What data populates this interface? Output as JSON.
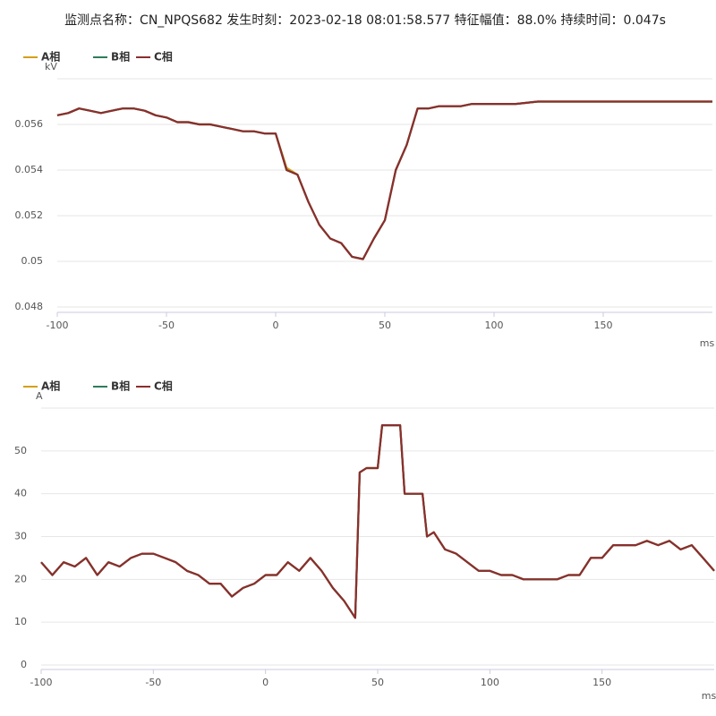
{
  "title": "监测点名称：CN_NPQS682 发生时刻：2023-02-18 08:01:58.577 特征幅值：88.0% 持续时间：0.047s",
  "chart_data": [
    {
      "type": "line",
      "y_unit": "kV",
      "x_unit": "ms",
      "xlim": [
        -100,
        200
      ],
      "xticks": [
        -100,
        -50,
        0,
        50,
        100,
        150
      ],
      "ylim": [
        0.048,
        0.058
      ],
      "yticks": [
        0.048,
        0.05,
        0.052,
        0.054,
        0.056
      ],
      "grid": true,
      "x": [
        -100,
        -95,
        -90,
        -85,
        -80,
        -75,
        -70,
        -65,
        -60,
        -55,
        -50,
        -45,
        -40,
        -35,
        -30,
        -25,
        -20,
        -15,
        -10,
        -5,
        0,
        5,
        10,
        15,
        20,
        25,
        30,
        35,
        40,
        45,
        50,
        55,
        60,
        65,
        70,
        75,
        80,
        85,
        90,
        95,
        100,
        110,
        120,
        130,
        140,
        150,
        160,
        170,
        180,
        190,
        200
      ],
      "series": [
        {
          "name": "A相",
          "color": "#d4a017",
          "values": [
            0.0564,
            0.0565,
            0.0567,
            0.0566,
            0.0565,
            0.0566,
            0.0567,
            0.0567,
            0.0566,
            0.0564,
            0.0563,
            0.0561,
            0.0561,
            0.056,
            0.056,
            0.0559,
            0.0558,
            0.0557,
            0.0557,
            0.0556,
            0.0556,
            0.0541,
            0.0538,
            0.0526,
            0.0516,
            0.051,
            0.0508,
            0.0502,
            0.0501,
            0.051,
            0.0518,
            0.054,
            0.0551,
            0.0567,
            0.0567,
            0.0568,
            0.0568,
            0.0568,
            0.0569,
            0.0569,
            0.0569,
            0.0569,
            0.057,
            0.057,
            0.057,
            0.057,
            0.057,
            0.057,
            0.057,
            0.057,
            0.057
          ]
        },
        {
          "name": "B相",
          "color": "#2e7d5b",
          "values": [
            0.0564,
            0.0565,
            0.0567,
            0.0566,
            0.0565,
            0.0566,
            0.0567,
            0.0567,
            0.0566,
            0.0564,
            0.0563,
            0.0561,
            0.0561,
            0.056,
            0.056,
            0.0559,
            0.0558,
            0.0557,
            0.0557,
            0.0556,
            0.0556,
            0.054,
            0.0538,
            0.0526,
            0.0516,
            0.051,
            0.0508,
            0.0502,
            0.0501,
            0.051,
            0.0518,
            0.054,
            0.0551,
            0.0567,
            0.0567,
            0.0568,
            0.0568,
            0.0568,
            0.0569,
            0.0569,
            0.0569,
            0.0569,
            0.057,
            0.057,
            0.057,
            0.057,
            0.057,
            0.057,
            0.057,
            0.057,
            0.057
          ]
        },
        {
          "name": "C相",
          "color": "#8b2e2e",
          "values": [
            0.0564,
            0.0565,
            0.0567,
            0.0566,
            0.0565,
            0.0566,
            0.0567,
            0.0567,
            0.0566,
            0.0564,
            0.0563,
            0.0561,
            0.0561,
            0.056,
            0.056,
            0.0559,
            0.0558,
            0.0557,
            0.0557,
            0.0556,
            0.0556,
            0.054,
            0.0538,
            0.0526,
            0.0516,
            0.051,
            0.0508,
            0.0502,
            0.0501,
            0.051,
            0.0518,
            0.054,
            0.0551,
            0.0567,
            0.0567,
            0.0568,
            0.0568,
            0.0568,
            0.0569,
            0.0569,
            0.0569,
            0.0569,
            0.057,
            0.057,
            0.057,
            0.057,
            0.057,
            0.057,
            0.057,
            0.057,
            0.057
          ]
        }
      ]
    },
    {
      "type": "line",
      "y_unit": "A",
      "x_unit": "ms",
      "xlim": [
        -100,
        200
      ],
      "xticks": [
        -100,
        -50,
        0,
        50,
        100,
        150
      ],
      "ylim": [
        0,
        60
      ],
      "yticks": [
        0,
        10,
        20,
        30,
        40,
        50
      ],
      "grid": true,
      "x": [
        -100,
        -95,
        -90,
        -85,
        -80,
        -75,
        -70,
        -65,
        -60,
        -55,
        -50,
        -45,
        -40,
        -35,
        -30,
        -25,
        -20,
        -15,
        -10,
        -5,
        0,
        5,
        10,
        15,
        20,
        25,
        30,
        35,
        40,
        42,
        45,
        50,
        52,
        55,
        60,
        62,
        65,
        70,
        72,
        75,
        80,
        85,
        90,
        95,
        100,
        105,
        110,
        115,
        120,
        125,
        130,
        135,
        140,
        145,
        150,
        155,
        160,
        165,
        170,
        175,
        180,
        185,
        190,
        195,
        200
      ],
      "series": [
        {
          "name": "A相",
          "color": "#d4a017",
          "values": [
            24,
            21,
            24,
            23,
            25,
            21,
            24,
            23,
            25,
            26,
            26,
            25,
            24,
            22,
            21,
            19,
            19,
            16,
            18,
            19,
            21,
            21,
            24,
            22,
            25,
            22,
            18,
            15,
            11,
            45,
            46,
            46,
            56,
            56,
            56,
            40,
            40,
            40,
            30,
            31,
            27,
            26,
            24,
            22,
            22,
            21,
            21,
            20,
            20,
            20,
            20,
            21,
            21,
            25,
            25,
            28,
            28,
            28,
            29,
            28,
            29,
            27,
            28,
            25,
            22
          ]
        },
        {
          "name": "B相",
          "color": "#2e7d5b",
          "values": [
            24,
            21,
            24,
            23,
            25,
            21,
            24,
            23,
            25,
            26,
            26,
            25,
            24,
            22,
            21,
            19,
            19,
            16,
            18,
            19,
            21,
            21,
            24,
            22,
            25,
            22,
            18,
            15,
            11,
            45,
            46,
            46,
            56,
            56,
            56,
            40,
            40,
            40,
            30,
            31,
            27,
            26,
            24,
            22,
            22,
            21,
            21,
            20,
            20,
            20,
            20,
            21,
            21,
            25,
            25,
            28,
            28,
            28,
            29,
            28,
            29,
            27,
            28,
            25,
            22
          ]
        },
        {
          "name": "C相",
          "color": "#8b2e2e",
          "values": [
            24,
            21,
            24,
            23,
            25,
            21,
            24,
            23,
            25,
            26,
            26,
            25,
            24,
            22,
            21,
            19,
            19,
            16,
            18,
            19,
            21,
            21,
            24,
            22,
            25,
            22,
            18,
            15,
            11,
            45,
            46,
            46,
            56,
            56,
            56,
            40,
            40,
            40,
            30,
            31,
            27,
            26,
            24,
            22,
            22,
            21,
            21,
            20,
            20,
            20,
            20,
            21,
            21,
            25,
            25,
            28,
            28,
            28,
            29,
            28,
            29,
            27,
            28,
            25,
            22
          ]
        }
      ]
    }
  ]
}
